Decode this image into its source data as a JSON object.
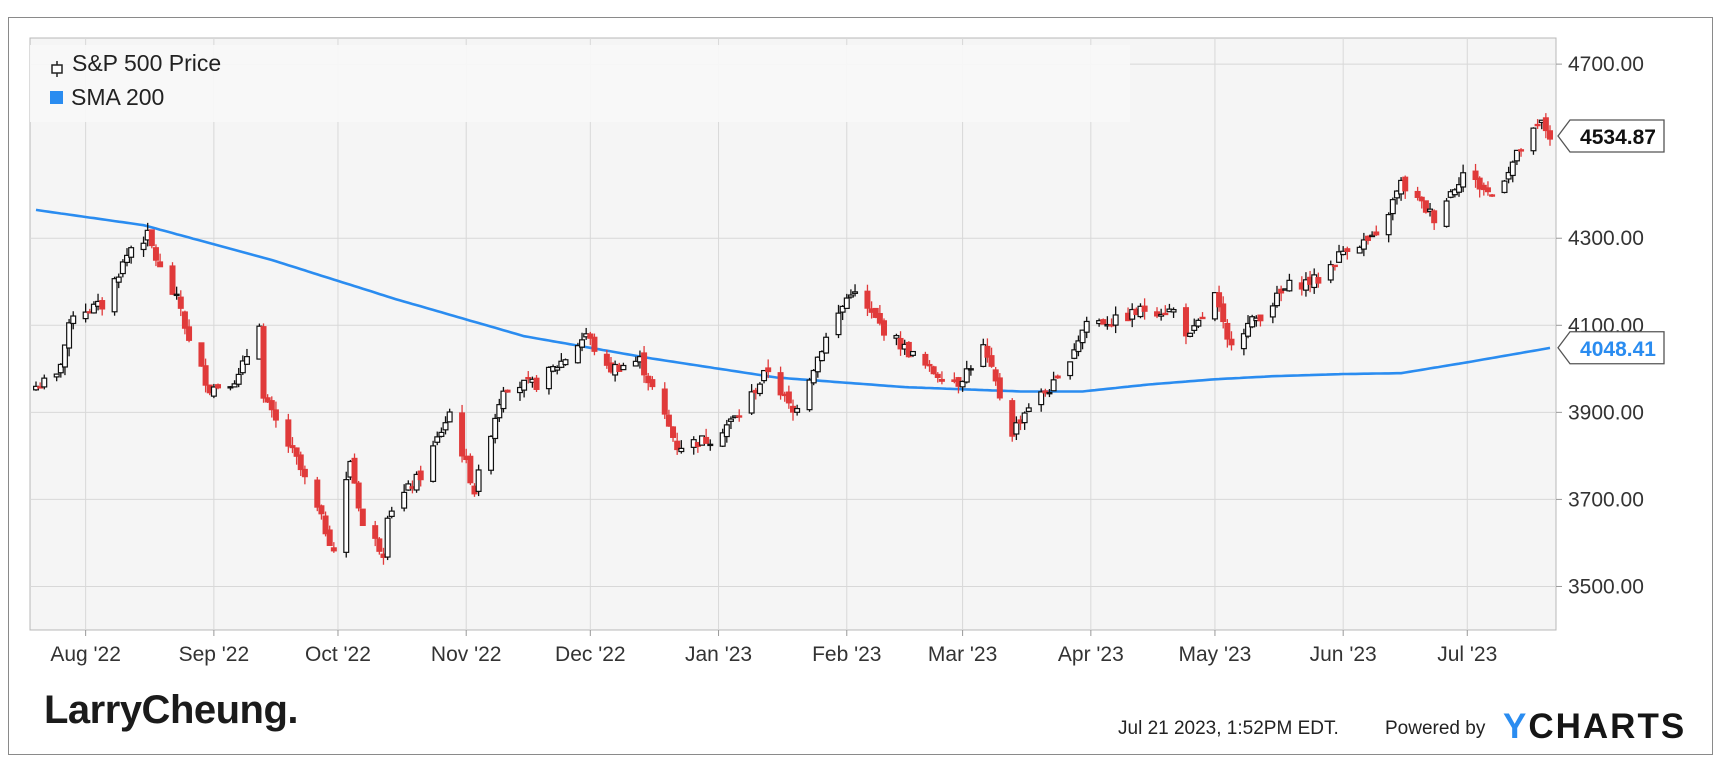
{
  "chart_data": {
    "type": "candlestick",
    "title": "",
    "series": [
      {
        "name": "S&P 500 Price",
        "kind": "candlestick",
        "up_color": "#111111",
        "down_color": "#e03a3a"
      },
      {
        "name": "SMA 200",
        "kind": "line",
        "color": "#2a8cf0"
      }
    ],
    "x_tick_labels": [
      "Aug '22",
      "Sep '22",
      "Oct '22",
      "Nov '22",
      "Dec '22",
      "Jan '23",
      "Feb '23",
      "Mar '23",
      "Apr '23",
      "May '23",
      "Jun '23",
      "Jul '23"
    ],
    "y_tick_labels": [
      "3500.00",
      "3700.00",
      "3900.00",
      "4100.00",
      "4300.00",
      "4700.00"
    ],
    "ylim": [
      3400,
      4760
    ],
    "xlim": [
      "2022-07-20",
      "2023-07-21"
    ],
    "last_price": {
      "label": "4534.87",
      "value": 4534.87
    },
    "sma_last": {
      "label": "4048.41",
      "value": 4048.41
    },
    "close_anchors": [
      [
        "2022-07-20",
        3960
      ],
      [
        "2022-07-25",
        3980
      ],
      [
        "2022-07-29",
        4130
      ],
      [
        "2022-08-05",
        4145
      ],
      [
        "2022-08-12",
        4280
      ],
      [
        "2022-08-16",
        4305
      ],
      [
        "2022-08-19",
        4228
      ],
      [
        "2022-08-24",
        4140
      ],
      [
        "2022-08-26",
        4060
      ],
      [
        "2022-08-31",
        3955
      ],
      [
        "2022-09-07",
        3980
      ],
      [
        "2022-09-12",
        4110
      ],
      [
        "2022-09-13",
        3930
      ],
      [
        "2022-09-21",
        3790
      ],
      [
        "2022-09-30",
        3585
      ],
      [
        "2022-10-04",
        3790
      ],
      [
        "2022-10-07",
        3640
      ],
      [
        "2022-10-12",
        3580
      ],
      [
        "2022-10-13",
        3670
      ],
      [
        "2022-10-21",
        3755
      ],
      [
        "2022-10-28",
        3900
      ],
      [
        "2022-11-03",
        3720
      ],
      [
        "2022-11-10",
        3960
      ],
      [
        "2022-11-18",
        3965
      ],
      [
        "2022-11-25",
        4025
      ],
      [
        "2022-11-30",
        4080
      ],
      [
        "2022-12-05",
        3998
      ],
      [
        "2022-12-13",
        4020
      ],
      [
        "2022-12-22",
        3822
      ],
      [
        "2022-12-30",
        3840
      ],
      [
        "2023-01-06",
        3895
      ],
      [
        "2023-01-13",
        3999
      ],
      [
        "2023-01-19",
        3898
      ],
      [
        "2023-01-27",
        4070
      ],
      [
        "2023-02-02",
        4180
      ],
      [
        "2023-02-10",
        4090
      ],
      [
        "2023-02-21",
        3997
      ],
      [
        "2023-02-28",
        3970
      ],
      [
        "2023-03-06",
        4048
      ],
      [
        "2023-03-13",
        3855
      ],
      [
        "2023-03-17",
        3916
      ],
      [
        "2023-03-24",
        3970
      ],
      [
        "2023-03-31",
        4109
      ],
      [
        "2023-04-07",
        4110
      ],
      [
        "2023-04-14",
        4137
      ],
      [
        "2023-04-21",
        4133
      ],
      [
        "2023-04-25",
        4071
      ],
      [
        "2023-05-01",
        4168
      ],
      [
        "2023-05-04",
        4061
      ],
      [
        "2023-05-12",
        4124
      ],
      [
        "2023-05-19",
        4191
      ],
      [
        "2023-05-26",
        4205
      ],
      [
        "2023-06-02",
        4282
      ],
      [
        "2023-06-09",
        4298
      ],
      [
        "2023-06-15",
        4425
      ],
      [
        "2023-06-23",
        4348
      ],
      [
        "2023-06-30",
        4450
      ],
      [
        "2023-07-07",
        4398
      ],
      [
        "2023-07-14",
        4505
      ],
      [
        "2023-07-19",
        4565
      ],
      [
        "2023-07-21",
        4535
      ]
    ],
    "sma_anchors": [
      [
        "2022-07-20",
        4365
      ],
      [
        "2022-08-15",
        4330
      ],
      [
        "2022-09-15",
        4250
      ],
      [
        "2022-10-15",
        4160
      ],
      [
        "2022-11-15",
        4075
      ],
      [
        "2022-12-15",
        4025
      ],
      [
        "2023-01-15",
        3980
      ],
      [
        "2023-02-15",
        3958
      ],
      [
        "2023-03-15",
        3948
      ],
      [
        "2023-03-30",
        3948
      ],
      [
        "2023-04-15",
        3964
      ],
      [
        "2023-05-01",
        3976
      ],
      [
        "2023-05-15",
        3983
      ],
      [
        "2023-06-01",
        3988
      ],
      [
        "2023-06-15",
        3990
      ],
      [
        "2023-07-01",
        4015
      ],
      [
        "2023-07-21",
        4048
      ]
    ]
  },
  "brand": {
    "name": "LarryCheung."
  },
  "footer": {
    "timestamp": "Jul 21 2023, 1:52PM EDT.",
    "powered_by": "Powered by",
    "ycharts_y": "Y",
    "ycharts_rest": "CHARTS"
  },
  "colors": {
    "up": "#111111",
    "down": "#e03a3a",
    "sma": "#2a8cf0",
    "grid": "#d8d8d8",
    "plot_bg": "#f5f5f5"
  }
}
